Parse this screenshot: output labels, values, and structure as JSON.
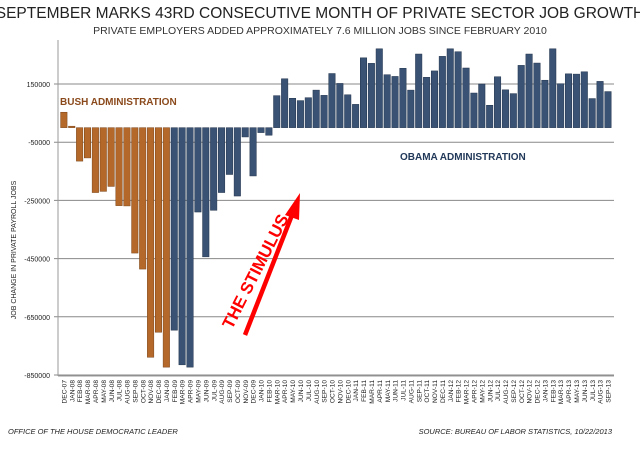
{
  "chart_data": {
    "type": "bar",
    "title": "SEPTEMBER MARKS 43RD CONSECUTIVE MONTH OF PRIVATE SECTOR JOB GROWTH",
    "subtitle": "PRIVATE EMPLOYERS ADDED APPROXIMATELY 7.6 MILLION JOBS SINCE FEBRUARY 2010",
    "xlabel": "",
    "ylabel": "JOB CHANGE IN PRIVATE PAYROLL JOBS",
    "ylim": [
      -850000,
      300000
    ],
    "yticks": [
      150000,
      -50000,
      -250000,
      -450000,
      -650000,
      -850000
    ],
    "ytick_labels": [
      "150000",
      "-50000",
      "-250000",
      "-450000",
      "-650000",
      "-850000"
    ],
    "grid": true,
    "categories": [
      "DEC-07",
      "JAN-08",
      "FEB-08",
      "MAR-08",
      "APR-08",
      "MAY-08",
      "JUN-08",
      "JUL-08",
      "AUG-08",
      "SEP-08",
      "OCT-08",
      "NOV-08",
      "DEC-08",
      "JAN-09",
      "FEB-09",
      "MAR-09",
      "APR-09",
      "MAY-09",
      "JUN-09",
      "JUL-09",
      "AUG-09",
      "SEP-09",
      "OCT-09",
      "NOV-09",
      "DEC-09",
      "JAN-10",
      "FEB-10",
      "MAR-10",
      "APR-10",
      "MAY-10",
      "JUN-10",
      "JUL-10",
      "AUG-10",
      "SEP-10",
      "OCT-10",
      "NOV-10",
      "DEC-10",
      "JAN-11",
      "FEB-11",
      "MAR-11",
      "APR-11",
      "MAY-11",
      "JUN-11",
      "JUL-11",
      "AUG-11",
      "SEP-11",
      "OCT-11",
      "NOV-11",
      "DEC-11",
      "JAN-12",
      "FEB-12",
      "MAR-12",
      "APR-12",
      "MAY-12",
      "JUN-12",
      "JUL-12",
      "AUG-12",
      "SEP-12",
      "OCT-12",
      "NOV-12",
      "DEC-12",
      "JAN-13",
      "FEB-13",
      "MAR-13",
      "APR-13",
      "MAY-13",
      "JUN-13",
      "JUL-13",
      "AUG-13",
      "SEP-13"
    ],
    "values": [
      53000,
      5000,
      -115000,
      -104000,
      -223000,
      -219000,
      -202000,
      -268000,
      -269000,
      -431000,
      -486000,
      -789000,
      -703000,
      -823000,
      -696000,
      -815000,
      -823000,
      -290000,
      -444000,
      -284000,
      -223000,
      -161000,
      -235000,
      -32000,
      -166000,
      -17000,
      -26000,
      110000,
      168000,
      101000,
      93000,
      103000,
      129000,
      111000,
      186000,
      152000,
      113000,
      80000,
      240000,
      221000,
      271000,
      182000,
      176000,
      204000,
      129000,
      253000,
      173000,
      195000,
      245000,
      271000,
      261000,
      205000,
      119000,
      150000,
      77000,
      175000,
      130000,
      117000,
      214000,
      253000,
      222000,
      163000,
      271000,
      151000,
      185000,
      184000,
      192000,
      100000,
      159000,
      124000
    ],
    "series": [
      {
        "name": "BUSH ADMINISTRATION",
        "range": [
          "DEC-07",
          "JAN-09"
        ],
        "color": "#b4692a"
      },
      {
        "name": "OBAMA ADMINISTRATION",
        "range": [
          "FEB-09",
          "SEP-13"
        ],
        "color": "#3a5273"
      }
    ],
    "annotations": [
      {
        "text": "BUSH ADMINISTRATION",
        "color": "#8b4a1c"
      },
      {
        "text": "OBAMA ADMINISTRATION",
        "color": "#22395a"
      },
      {
        "text": "THE STIMULUS",
        "color": "#ff0000"
      }
    ]
  },
  "footer": {
    "left": "OFFICE OF THE HOUSE DEMOCRATIC LEADER",
    "right": "SOURCE: BUREAU OF LABOR STATISTICS, 10/22/2013"
  }
}
